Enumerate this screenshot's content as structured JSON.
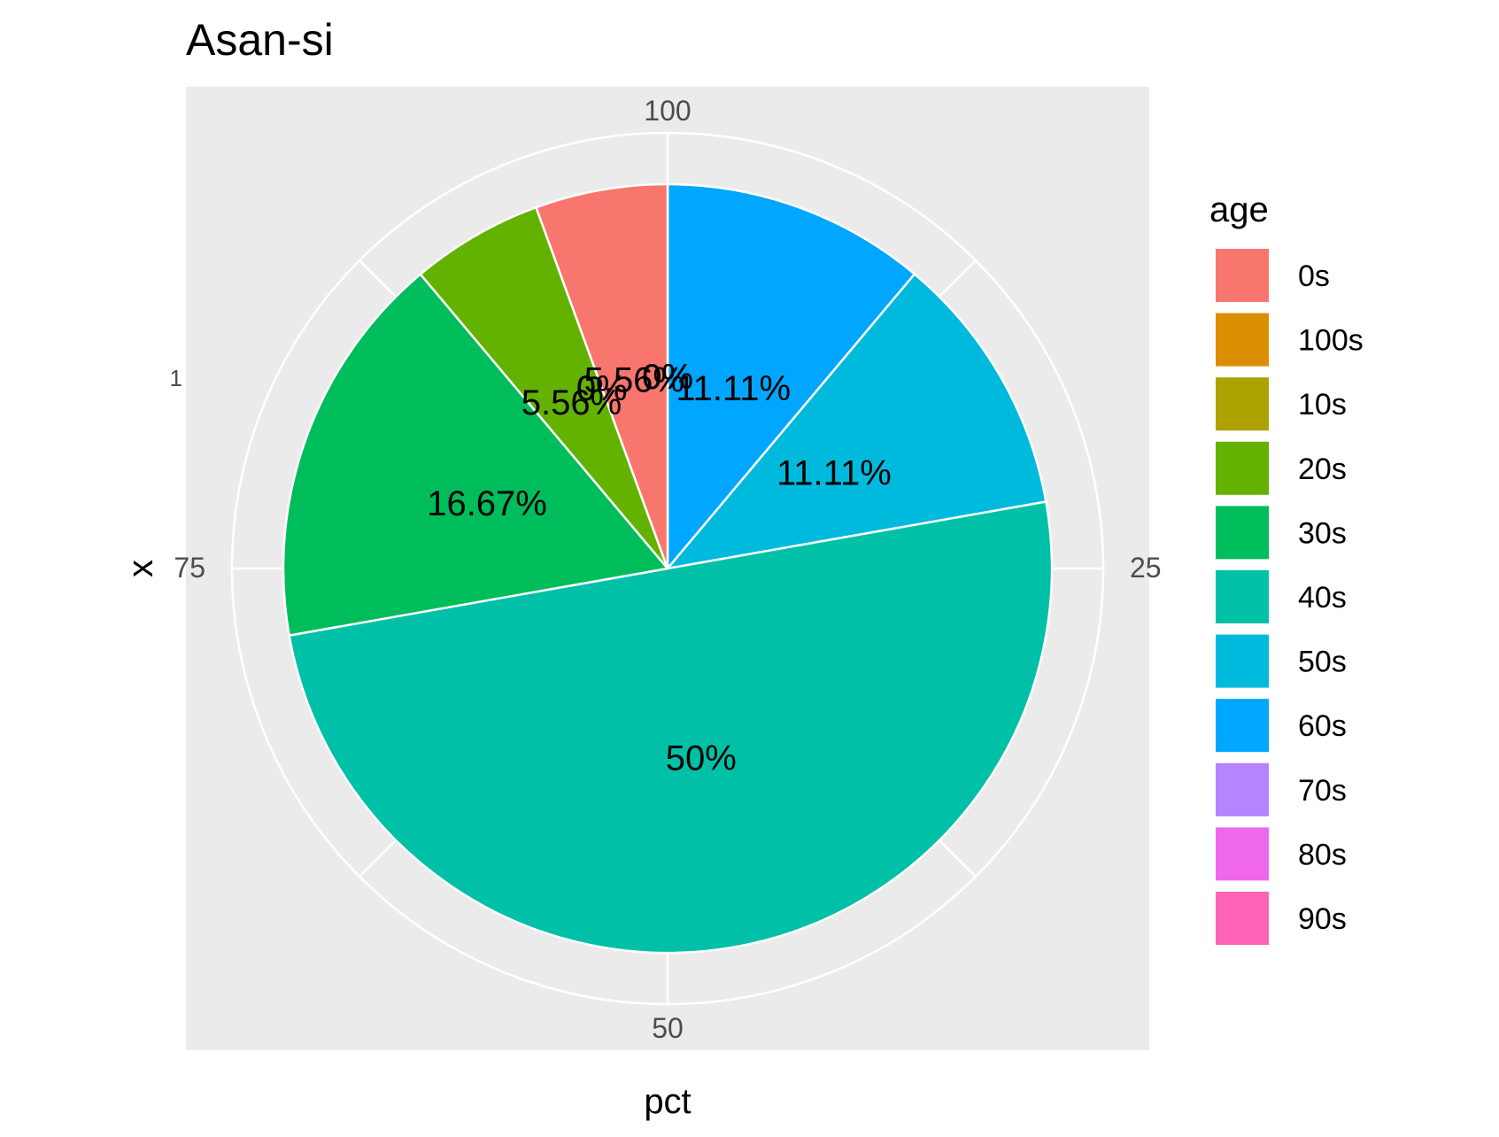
{
  "chart_data": {
    "type": "pie",
    "title": "Asan-si",
    "xlabel": "pct",
    "ylabel": "x",
    "y_tick_label": "1",
    "angle_ticks": [
      "100",
      "25",
      "50",
      "75"
    ],
    "legend": {
      "title": "age",
      "position": "right"
    },
    "slices": [
      {
        "label": "0s",
        "value": 5.56,
        "text": "5.56%",
        "color": "#F8766D"
      },
      {
        "label": "100s",
        "value": 0,
        "text": "0%",
        "color": "#DB8E00"
      },
      {
        "label": "10s",
        "value": 0,
        "text": "0%",
        "color": "#AEA200"
      },
      {
        "label": "20s",
        "value": 5.56,
        "text": "5.56%",
        "color": "#64B200"
      },
      {
        "label": "30s",
        "value": 16.67,
        "text": "16.67%",
        "color": "#00BD5C"
      },
      {
        "label": "40s",
        "value": 50,
        "text": "50%",
        "color": "#00C1A7"
      },
      {
        "label": "50s",
        "value": 11.11,
        "text": "11.11%",
        "color": "#00BADE"
      },
      {
        "label": "60s",
        "value": 11.11,
        "text": "11.11%",
        "color": "#00A6FF"
      },
      {
        "label": "70s",
        "value": 0,
        "text": "0%",
        "color": "#B385FF"
      },
      {
        "label": "80s",
        "value": 0,
        "text": "0%",
        "color": "#EF67EB"
      },
      {
        "label": "90s",
        "value": 0,
        "text": "0%",
        "color": "#FF63B6"
      }
    ],
    "panel_background": "#EBEBEB",
    "grid_color": "#FFFFFF"
  }
}
